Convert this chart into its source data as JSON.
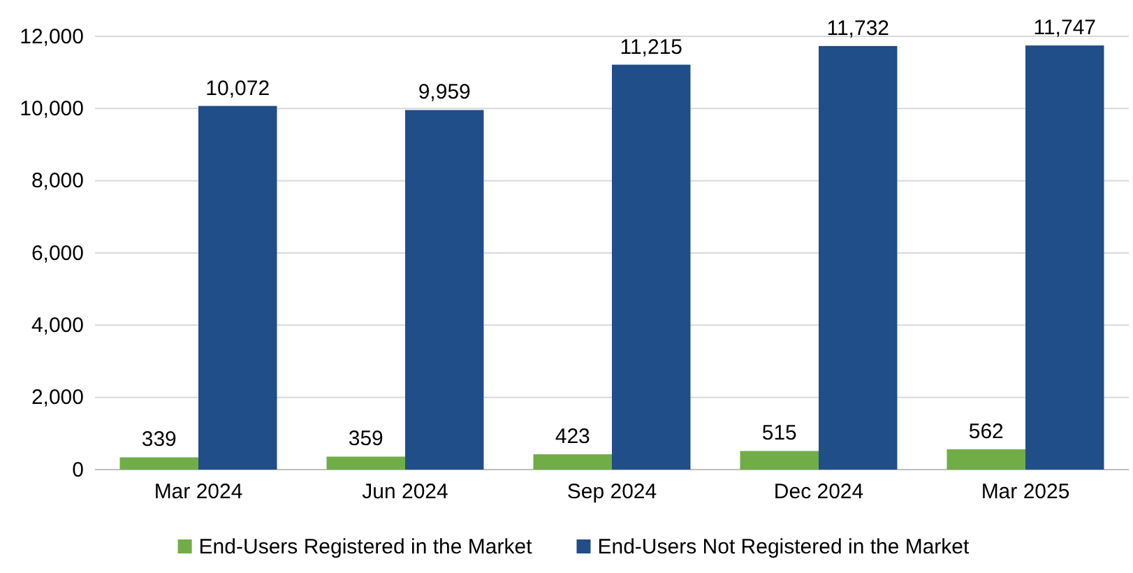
{
  "chart_data": {
    "type": "bar",
    "categories": [
      "Mar 2024",
      "Jun 2024",
      "Sep 2024",
      "Dec 2024",
      "Mar 2025"
    ],
    "series": [
      {
        "name": "End-Users Registered in the Market",
        "color": "#70ad47",
        "values": [
          339,
          359,
          423,
          515,
          562
        ],
        "value_labels": [
          "339",
          "359",
          "423",
          "515",
          "562"
        ]
      },
      {
        "name": "End-Users Not Registered in the Market",
        "color": "#1f4e89",
        "values": [
          10072,
          9959,
          11215,
          11732,
          11747
        ],
        "value_labels": [
          "10,072",
          "9,959",
          "11,215",
          "11,732",
          "11,747"
        ]
      }
    ],
    "ylim": [
      0,
      12000
    ],
    "yticks": [
      {
        "value": 0,
        "label": "0"
      },
      {
        "value": 2000,
        "label": "2,000"
      },
      {
        "value": 4000,
        "label": "4,000"
      },
      {
        "value": 6000,
        "label": "6,000"
      },
      {
        "value": 8000,
        "label": "8,000"
      },
      {
        "value": 10000,
        "label": "10,000"
      },
      {
        "value": 12000,
        "label": "12,000"
      }
    ],
    "grid": "y",
    "legend": "bottom"
  }
}
